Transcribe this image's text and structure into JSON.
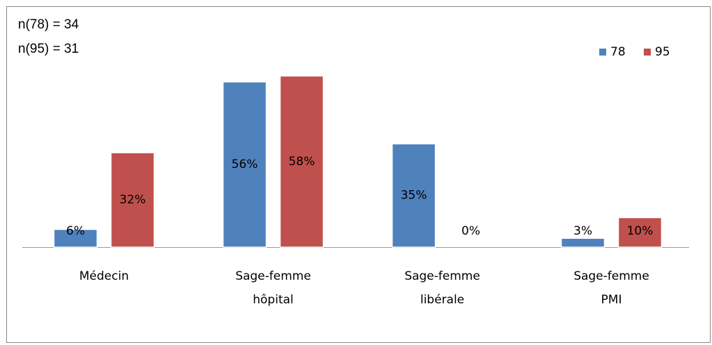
{
  "chart_data": {
    "type": "bar",
    "annotations": [
      "n(78) = 34",
      "n(95) = 31"
    ],
    "categories": [
      "Médecin",
      "Sage-femme hôpital",
      "Sage-femme libérale",
      "Sage-femme PMI"
    ],
    "series": [
      {
        "name": "78",
        "color": "#4f81bd",
        "values": [
          6,
          56,
          35,
          3
        ],
        "value_labels": [
          "6%",
          "56%",
          "35%",
          "3%"
        ]
      },
      {
        "name": "95",
        "color": "#c0504d",
        "values": [
          32,
          58,
          0,
          10
        ],
        "value_labels": [
          "32%",
          "58%",
          "0%",
          "10%"
        ]
      }
    ],
    "ylim": [
      0,
      60
    ],
    "legend": "upper right"
  }
}
